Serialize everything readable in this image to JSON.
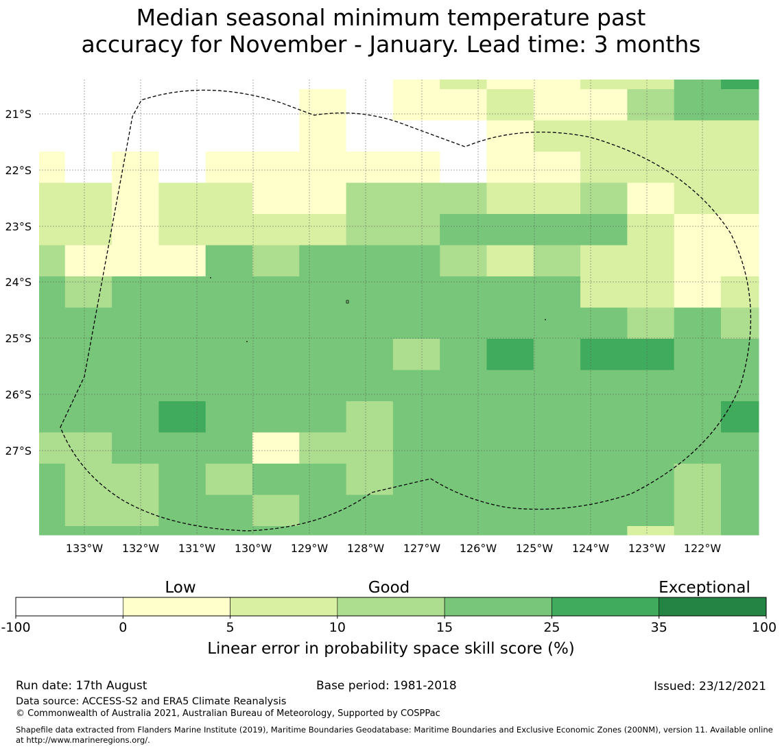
{
  "title": {
    "line1": "Median seasonal minimum temperature past",
    "line2": "accuracy for November - January. Lead time: 3 months"
  },
  "map": {
    "lon_labels": [
      "133°W",
      "132°W",
      "131°W",
      "130°W",
      "129°W",
      "128°W",
      "127°W",
      "126°W",
      "125°W",
      "124°W",
      "123°W",
      "122°W"
    ],
    "lat_labels": [
      "21°S",
      "22°S",
      "23°S",
      "24°S",
      "25°S",
      "26°S",
      "27°S"
    ],
    "lon_range": [
      -133.8,
      -121.0
    ],
    "lat_range": [
      -20.4,
      -28.55
    ],
    "grid_lines": true,
    "boundary_style": "dashed black outline (maritime boundary / EEZ)",
    "cell_categories": {
      "row_0": "clipped top row: white / 0-5 / 5-10 / 15-25 / 25-35 mix",
      "note": "each cell value is a skill-score bin index: 0 = -100..0, 1 = 0..5, 2 = 5..10, 3 = 10..15, 4 = 15..25, 5 = 25..35, 6 = 35..100"
    },
    "grid_rows": [
      [
        0,
        0,
        0,
        0,
        0,
        0,
        0,
        0,
        1,
        2,
        1,
        1,
        2,
        2,
        4,
        5
      ],
      [
        0,
        0,
        0,
        0,
        0,
        0,
        1,
        0,
        1,
        1,
        2,
        1,
        1,
        3,
        4,
        4
      ],
      [
        0,
        0,
        0,
        0,
        0,
        0,
        1,
        0,
        0,
        0,
        1,
        2,
        2,
        2,
        2,
        2
      ],
      [
        1,
        0,
        1,
        0,
        1,
        1,
        1,
        1,
        1,
        0,
        1,
        1,
        2,
        2,
        2,
        2
      ],
      [
        2,
        2,
        1,
        2,
        2,
        1,
        1,
        3,
        3,
        3,
        2,
        2,
        3,
        1,
        2,
        2
      ],
      [
        2,
        2,
        1,
        2,
        2,
        2,
        2,
        3,
        3,
        4,
        4,
        4,
        4,
        2,
        1,
        1
      ],
      [
        3,
        1,
        1,
        1,
        4,
        3,
        4,
        4,
        4,
        3,
        2,
        3,
        2,
        2,
        1,
        1
      ],
      [
        4,
        3,
        4,
        4,
        4,
        4,
        4,
        4,
        4,
        4,
        4,
        4,
        2,
        2,
        1,
        2
      ],
      [
        4,
        4,
        4,
        4,
        4,
        4,
        4,
        4,
        4,
        4,
        4,
        4,
        4,
        3,
        4,
        3
      ],
      [
        4,
        4,
        4,
        4,
        4,
        4,
        4,
        4,
        3,
        4,
        5,
        4,
        5,
        5,
        4,
        4
      ],
      [
        4,
        4,
        4,
        4,
        4,
        4,
        4,
        4,
        4,
        4,
        4,
        4,
        4,
        4,
        4,
        4
      ],
      [
        4,
        4,
        4,
        5,
        4,
        4,
        4,
        3,
        4,
        4,
        4,
        4,
        4,
        4,
        4,
        5
      ],
      [
        3,
        3,
        4,
        4,
        4,
        1,
        3,
        3,
        4,
        4,
        4,
        4,
        4,
        4,
        4,
        4
      ],
      [
        4,
        3,
        3,
        4,
        3,
        4,
        4,
        3,
        4,
        4,
        4,
        4,
        4,
        4,
        3,
        4
      ],
      [
        4,
        3,
        3,
        4,
        4,
        3,
        4,
        4,
        4,
        4,
        4,
        4,
        4,
        4,
        3,
        4
      ],
      [
        4,
        4,
        4,
        4,
        4,
        4,
        4,
        4,
        4,
        4,
        4,
        4,
        4,
        2,
        3,
        4
      ]
    ]
  },
  "legend": {
    "category_labels": {
      "low": "Low",
      "good": "Good",
      "exceptional": "Exceptional"
    },
    "tick_labels": [
      "-100",
      "0",
      "5",
      "10",
      "15",
      "25",
      "35",
      "100"
    ],
    "bin_colors": [
      "#ffffff",
      "#ffffcc",
      "#d9f0a3",
      "#addd8e",
      "#78c679",
      "#41ab5d",
      "#238443"
    ],
    "axis_label": "Linear error in probability space skill score (%)"
  },
  "footer": {
    "run_date": "Run date: 17th August",
    "base_period": "Base period: 1981-2018",
    "issued": "Issued: 23/12/2021",
    "data_source": "Data source: ACCESS-S2 and ERA5 Climate Reanalysis",
    "copyright": "© Commonwealth of Australia 2021, Australian Bureau of Meteorology, Supported by COSPPac",
    "shapefile": "Shapefile data extracted from Flanders Marine Institute (2019), Maritime Boundaries Geodatabase: Maritime Boundaries and Exclusive Economic Zones (200NM), version 11. Available online at http://www.marineregions.org/."
  }
}
